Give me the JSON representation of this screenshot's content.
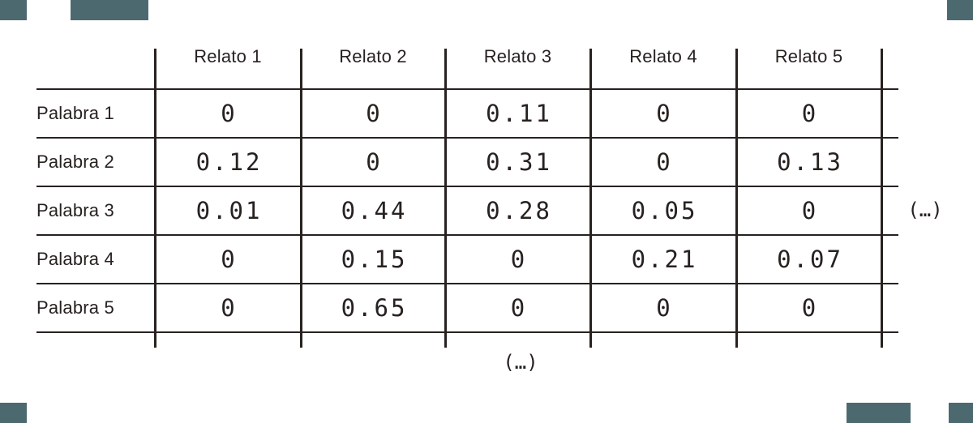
{
  "decor": {
    "block_color": "#4d6970"
  },
  "chart_data": {
    "type": "table",
    "title": "",
    "columns": [
      "Relato 1",
      "Relato 2",
      "Relato 3",
      "Relato 4",
      "Relato 5"
    ],
    "row_labels": [
      "Palabra 1",
      "Palabra 2",
      "Palabra 3",
      "Palabra 4",
      "Palabra 5"
    ],
    "rows": [
      [
        "0",
        "0",
        "0.11",
        "0",
        "0"
      ],
      [
        "0.12",
        "0",
        "0.31",
        "0",
        "0.13"
      ],
      [
        "0.01",
        "0.44",
        "0.28",
        "0.05",
        "0"
      ],
      [
        "0",
        "0.15",
        "0",
        "0.21",
        "0.07"
      ],
      [
        "0",
        "0.65",
        "0",
        "0",
        "0"
      ]
    ],
    "continuation_marker_right": "(…)",
    "continuation_marker_bottom": "(…)",
    "ink_color": "#272120",
    "grid": "partial-open-matrix"
  }
}
